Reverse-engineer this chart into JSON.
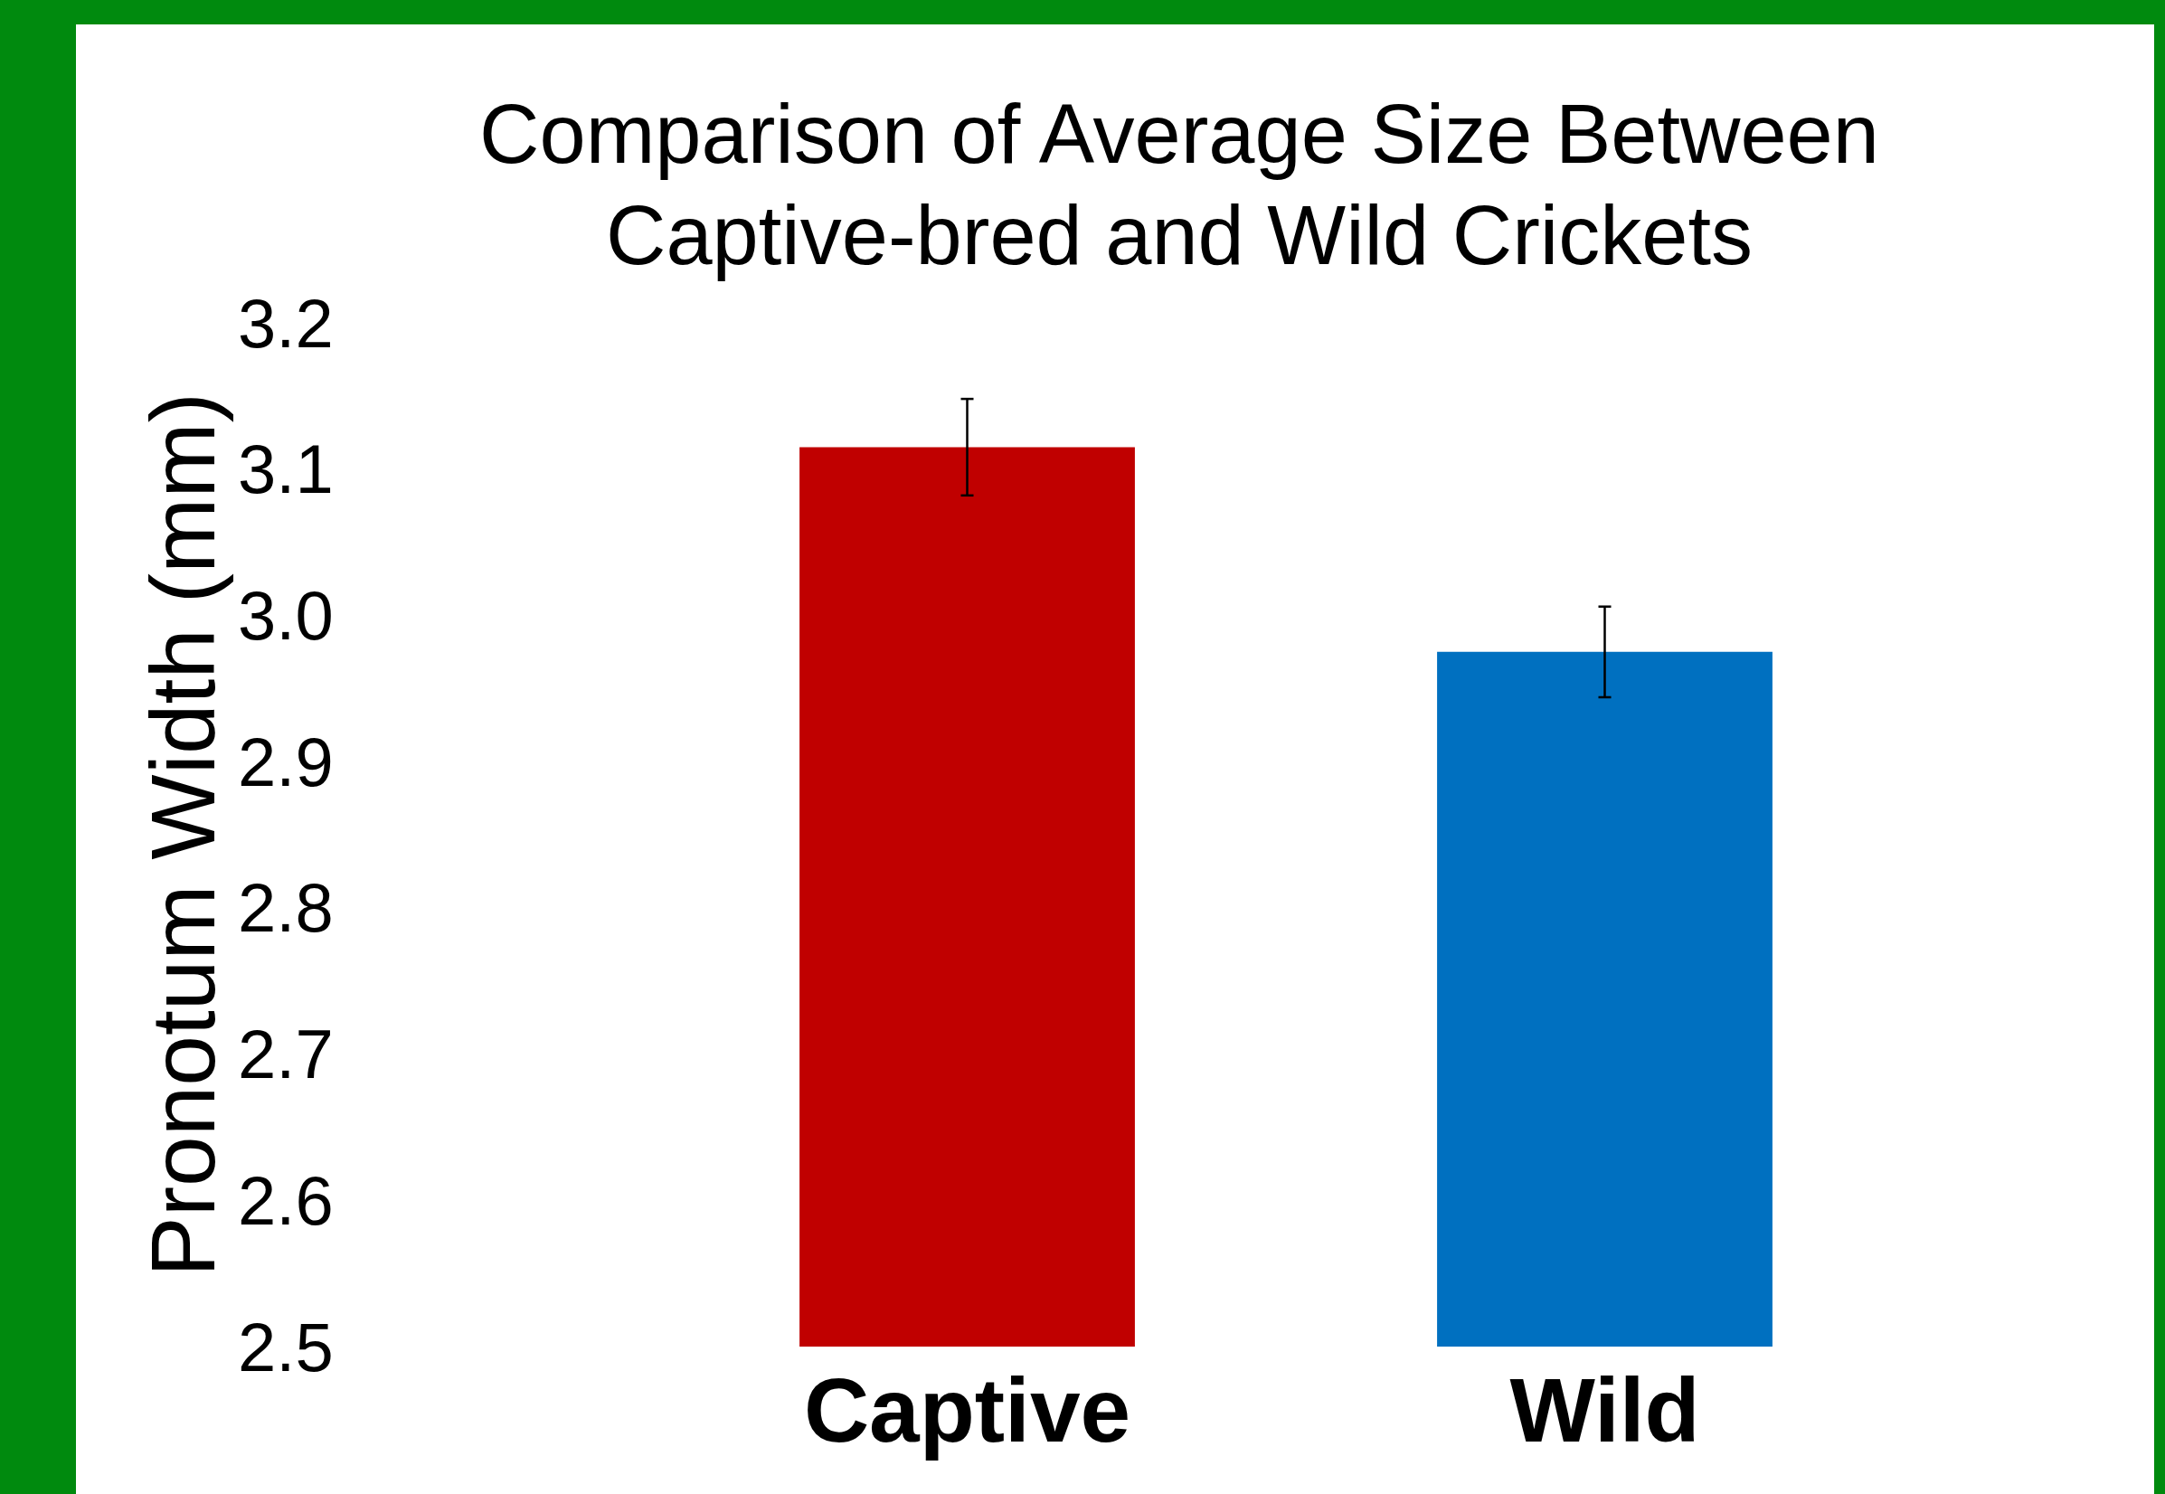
{
  "chart_data": {
    "type": "bar",
    "title": "Comparison of Average Size Between\nCaptive-bred and Wild Crickets",
    "ylabel": "Pronotum Width (mm)",
    "categories": [
      "Captive",
      "Wild"
    ],
    "values": [
      3.115,
      2.975
    ],
    "colors": [
      "#c00000",
      "#0070c0"
    ],
    "errors": [
      0.033,
      0.031
    ],
    "ylim": [
      2.5,
      3.2
    ],
    "yticks": [
      2.5,
      2.6,
      2.7,
      2.8,
      2.9,
      {
        "value": 3,
        "label": "3.0"
      },
      3.1,
      3.2
    ],
    "grid": false
  }
}
